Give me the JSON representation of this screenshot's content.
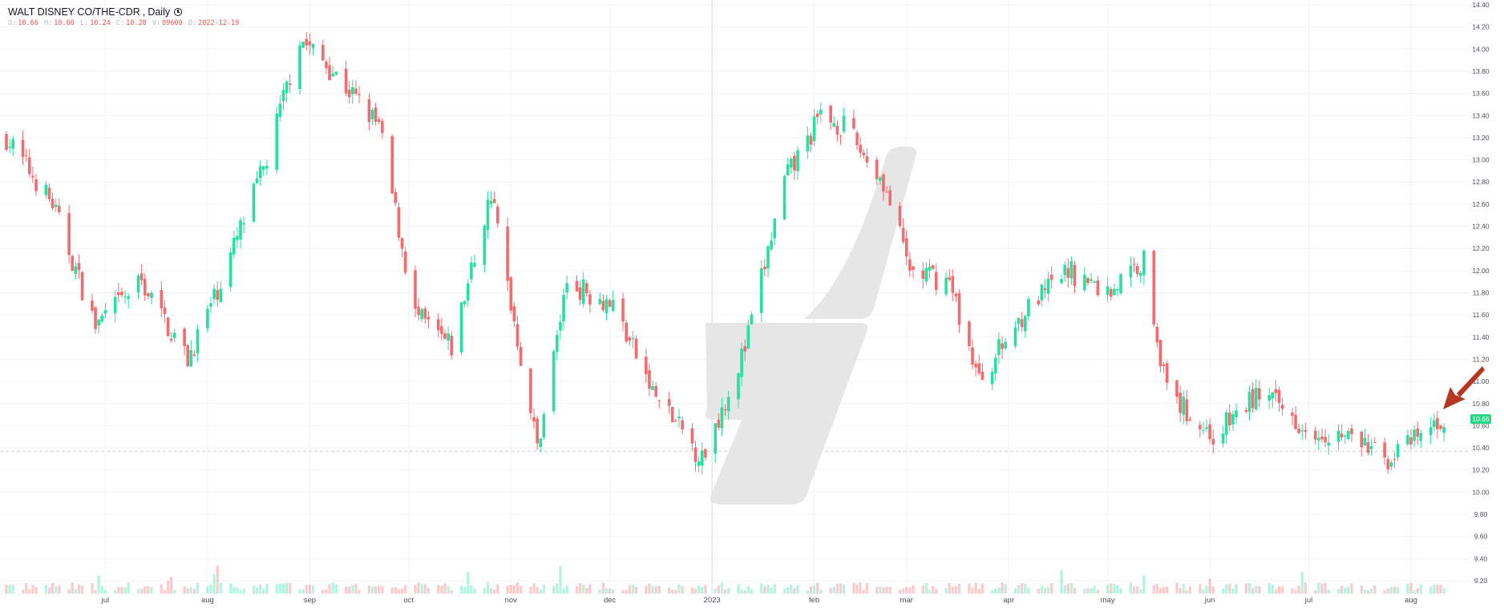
{
  "legend": {
    "symbol": "WALT DISNEY CO/THE-CDR",
    "interval": "Daily",
    "o_label": "O:",
    "o": "10.66",
    "h_label": "H:",
    "h": "10.66",
    "l_label": "L:",
    "l": "10.24",
    "c_label": "C:",
    "c": "10.28",
    "v_label": "V:",
    "v": "89600",
    "d_label": "D:",
    "d": "2022-12-19"
  },
  "colors": {
    "up": "#26e0a0",
    "down": "#f26b6e",
    "grid": "#f0f2f5",
    "axis_text": "#4a4f5c",
    "price_tag": "#26d882",
    "arrow": "#b5371f",
    "watermark": "#e6e6e6"
  },
  "icons": {
    "interval_icon": "clock-icon",
    "annotation": "arrow-icon"
  },
  "chart_data": {
    "type": "candlestick",
    "title": "WALT DISNEY CO/THE-CDR, Daily",
    "ylim": [
      9.1,
      14.4
    ],
    "y_ticks": [
      "9.20",
      "9.40",
      "9.60",
      "9.80",
      "10.00",
      "10.20",
      "10.40",
      "10.60",
      "10.80",
      "11.00",
      "11.20",
      "11.40",
      "11.60",
      "11.80",
      "12.00",
      "12.20",
      "12.40",
      "12.60",
      "12.80",
      "13.00",
      "13.20",
      "13.40",
      "13.60",
      "13.80",
      "14.00",
      "14.20",
      "14.40"
    ],
    "x_ticks": [
      {
        "label": "jul",
        "date": "2022-07-01"
      },
      {
        "label": "aug",
        "date": "2022-08-01"
      },
      {
        "label": "sep",
        "date": "2022-09-01"
      },
      {
        "label": "oct",
        "date": "2022-10-01"
      },
      {
        "label": "nov",
        "date": "2022-11-01"
      },
      {
        "label": "dec",
        "date": "2022-12-01"
      },
      {
        "label": "2023",
        "date": "2023-01-01"
      },
      {
        "label": "feb",
        "date": "2023-02-01"
      },
      {
        "label": "mar",
        "date": "2023-03-01"
      },
      {
        "label": "apr",
        "date": "2023-04-01"
      },
      {
        "label": "may",
        "date": "2023-05-01"
      },
      {
        "label": "jun",
        "date": "2023-06-01"
      },
      {
        "label": "jul",
        "date": "2023-07-01"
      },
      {
        "label": "aug",
        "date": "2023-08-01"
      }
    ],
    "last_price": "10.66",
    "reference_price": 10.37,
    "closes": [
      {
        "date": "2022-06-01",
        "close": 13.2
      },
      {
        "date": "2022-06-15",
        "close": 12.6
      },
      {
        "date": "2022-06-28",
        "close": 11.5
      },
      {
        "date": "2022-07-12",
        "close": 11.9
      },
      {
        "date": "2022-07-26",
        "close": 11.2
      },
      {
        "date": "2022-08-05",
        "close": 11.9
      },
      {
        "date": "2022-08-19",
        "close": 13.0
      },
      {
        "date": "2022-08-29",
        "close": 14.1
      },
      {
        "date": "2022-09-08",
        "close": 13.8
      },
      {
        "date": "2022-09-22",
        "close": 13.3
      },
      {
        "date": "2022-10-03",
        "close": 11.6
      },
      {
        "date": "2022-10-14",
        "close": 11.3
      },
      {
        "date": "2022-10-26",
        "close": 12.7
      },
      {
        "date": "2022-11-09",
        "close": 10.4
      },
      {
        "date": "2022-11-18",
        "close": 11.9
      },
      {
        "date": "2022-12-02",
        "close": 11.7
      },
      {
        "date": "2022-12-14",
        "close": 10.9
      },
      {
        "date": "2022-12-29",
        "close": 10.3
      },
      {
        "date": "2023-01-11",
        "close": 11.3
      },
      {
        "date": "2023-01-23",
        "close": 12.8
      },
      {
        "date": "2023-02-03",
        "close": 13.4
      },
      {
        "date": "2023-02-10",
        "close": 13.3
      },
      {
        "date": "2023-02-22",
        "close": 12.8
      },
      {
        "date": "2023-03-02",
        "close": 12.0
      },
      {
        "date": "2023-03-14",
        "close": 11.9
      },
      {
        "date": "2023-03-23",
        "close": 11.0
      },
      {
        "date": "2023-04-05",
        "close": 11.6
      },
      {
        "date": "2023-04-19",
        "close": 12.0
      },
      {
        "date": "2023-05-01",
        "close": 11.8
      },
      {
        "date": "2023-05-12",
        "close": 12.1
      },
      {
        "date": "2023-05-19",
        "close": 10.9
      },
      {
        "date": "2023-06-02",
        "close": 10.5
      },
      {
        "date": "2023-06-16",
        "close": 10.9
      },
      {
        "date": "2023-06-30",
        "close": 10.6
      },
      {
        "date": "2023-07-13",
        "close": 10.5
      },
      {
        "date": "2023-07-25",
        "close": 10.3
      },
      {
        "date": "2023-08-04",
        "close": 10.5
      },
      {
        "date": "2023-08-11",
        "close": 10.66
      }
    ]
  }
}
